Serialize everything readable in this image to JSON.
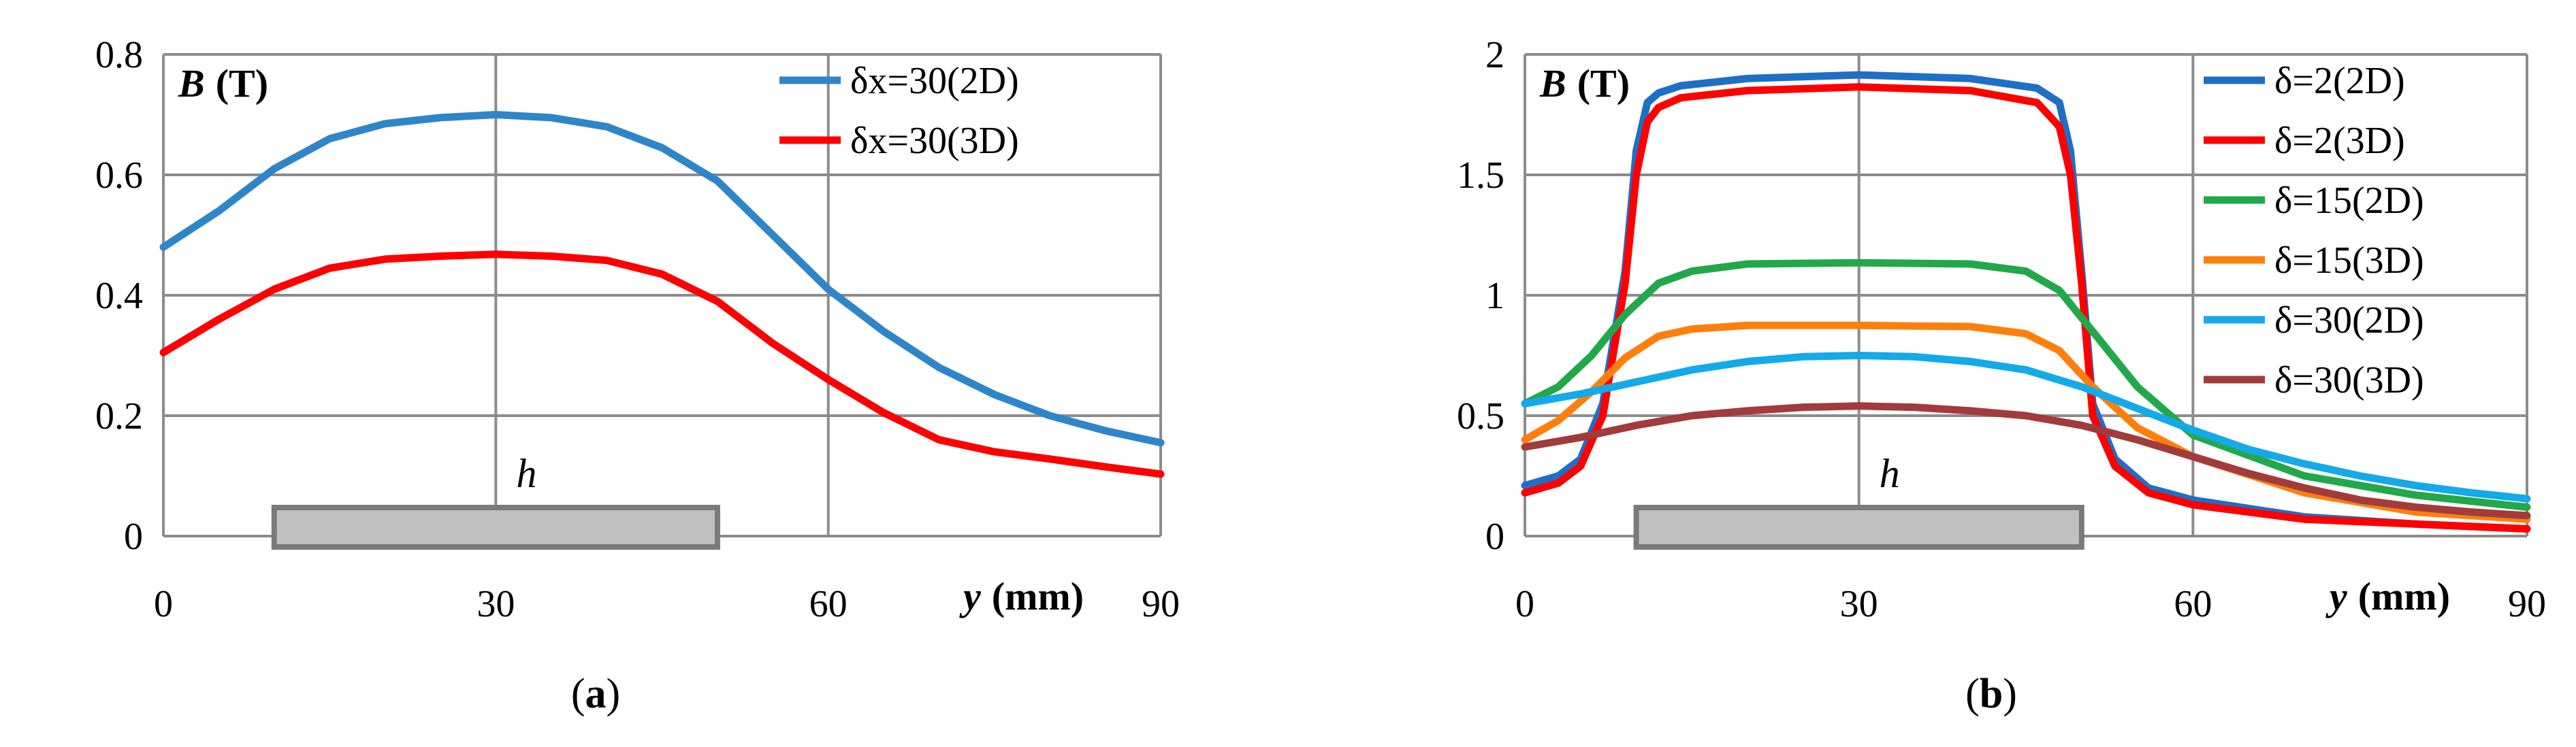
{
  "chart_data": [
    {
      "type": "line",
      "panel": "(a)",
      "caption_letter": "a",
      "ylabel_var": "B",
      "ylabel_unit": "(T)",
      "xlabel_var": "y",
      "xlabel_unit": "(mm)",
      "xlim": [
        0,
        90
      ],
      "ylim": [
        0,
        0.8
      ],
      "x_ticks": [
        "0",
        "30",
        "60",
        "90"
      ],
      "y_ticks": [
        "0",
        "0.2",
        "0.4",
        "0.6",
        "0.8"
      ],
      "grid": true,
      "legend_position": "top-right",
      "bar": {
        "label": "h",
        "x_start": 10,
        "x_end": 50
      },
      "series": [
        {
          "name": "δx=30(2D)",
          "color": "#2E86C8",
          "x": [
            0,
            5,
            10,
            15,
            20,
            25,
            30,
            35,
            40,
            45,
            50,
            55,
            60,
            65,
            70,
            75,
            80,
            85,
            90
          ],
          "y": [
            0.48,
            0.54,
            0.61,
            0.66,
            0.685,
            0.695,
            0.7,
            0.695,
            0.68,
            0.645,
            0.59,
            0.5,
            0.41,
            0.34,
            0.28,
            0.235,
            0.2,
            0.175,
            0.155
          ]
        },
        {
          "name": "δx=30(3D)",
          "color": "#FF0000",
          "x": [
            0,
            5,
            10,
            15,
            20,
            25,
            30,
            35,
            40,
            45,
            50,
            55,
            60,
            65,
            70,
            75,
            80,
            85,
            90
          ],
          "y": [
            0.305,
            0.36,
            0.41,
            0.445,
            0.46,
            0.465,
            0.468,
            0.465,
            0.458,
            0.435,
            0.39,
            0.32,
            0.26,
            0.205,
            0.16,
            0.14,
            0.128,
            0.115,
            0.103
          ]
        }
      ]
    },
    {
      "type": "line",
      "panel": "(b)",
      "caption_letter": "b",
      "ylabel_var": "B",
      "ylabel_unit": "(T)",
      "xlabel_var": "y",
      "xlabel_unit": "(mm)",
      "xlim": [
        0,
        90
      ],
      "ylim": [
        0,
        2
      ],
      "x_ticks": [
        "0",
        "30",
        "60",
        "90"
      ],
      "y_ticks": [
        "0",
        "0.5",
        "1",
        "1.5",
        "2"
      ],
      "grid": true,
      "legend_position": "top-right",
      "bar": {
        "label": "h",
        "x_start": 10,
        "x_end": 50
      },
      "series": [
        {
          "name": "δ=2(2D)",
          "color": "#1F6FC6",
          "x": [
            0,
            3,
            5,
            7,
            9,
            10,
            11,
            12,
            14,
            20,
            30,
            40,
            46,
            48,
            49,
            50,
            51,
            53,
            56,
            60,
            70,
            80,
            90
          ],
          "y": [
            0.21,
            0.25,
            0.32,
            0.55,
            1.1,
            1.6,
            1.8,
            1.84,
            1.87,
            1.9,
            1.915,
            1.9,
            1.86,
            1.8,
            1.6,
            1.1,
            0.55,
            0.32,
            0.2,
            0.15,
            0.08,
            0.05,
            0.03
          ]
        },
        {
          "name": "δ=2(3D)",
          "color": "#FF0000",
          "x": [
            0,
            3,
            5,
            7,
            9,
            10,
            11,
            12,
            14,
            20,
            30,
            40,
            46,
            48,
            49,
            50,
            51,
            53,
            56,
            60,
            70,
            80,
            90
          ],
          "y": [
            0.18,
            0.22,
            0.29,
            0.5,
            1.05,
            1.5,
            1.72,
            1.78,
            1.82,
            1.85,
            1.865,
            1.85,
            1.8,
            1.7,
            1.5,
            1.05,
            0.5,
            0.29,
            0.18,
            0.13,
            0.07,
            0.05,
            0.03
          ]
        },
        {
          "name": "δ=15(2D)",
          "color": "#22A84A",
          "x": [
            0,
            3,
            6,
            9,
            12,
            15,
            20,
            30,
            40,
            45,
            48,
            51,
            55,
            60,
            70,
            80,
            90
          ],
          "y": [
            0.55,
            0.62,
            0.75,
            0.92,
            1.05,
            1.1,
            1.13,
            1.135,
            1.13,
            1.1,
            1.02,
            0.85,
            0.62,
            0.42,
            0.25,
            0.17,
            0.12
          ]
        },
        {
          "name": "δ=15(3D)",
          "color": "#FF7F0E",
          "x": [
            0,
            3,
            6,
            9,
            12,
            15,
            20,
            30,
            40,
            45,
            48,
            51,
            55,
            60,
            70,
            80,
            90
          ],
          "y": [
            0.4,
            0.48,
            0.6,
            0.74,
            0.83,
            0.86,
            0.875,
            0.875,
            0.87,
            0.84,
            0.77,
            0.62,
            0.45,
            0.33,
            0.18,
            0.1,
            0.07
          ]
        },
        {
          "name": "δ=30(2D)",
          "color": "#14A9E9",
          "x": [
            0,
            5,
            10,
            15,
            20,
            25,
            30,
            35,
            40,
            45,
            50,
            55,
            60,
            65,
            70,
            75,
            80,
            85,
            90
          ],
          "y": [
            0.55,
            0.59,
            0.64,
            0.69,
            0.725,
            0.745,
            0.75,
            0.745,
            0.725,
            0.69,
            0.62,
            0.53,
            0.44,
            0.36,
            0.3,
            0.25,
            0.21,
            0.18,
            0.155
          ]
        },
        {
          "name": "δ=30(3D)",
          "color": "#A23B3B",
          "x": [
            0,
            5,
            10,
            15,
            20,
            25,
            30,
            35,
            40,
            45,
            50,
            55,
            60,
            65,
            70,
            75,
            80,
            85,
            90
          ],
          "y": [
            0.37,
            0.41,
            0.46,
            0.5,
            0.52,
            0.535,
            0.54,
            0.535,
            0.52,
            0.5,
            0.46,
            0.4,
            0.33,
            0.26,
            0.2,
            0.15,
            0.12,
            0.1,
            0.085
          ]
        }
      ]
    }
  ]
}
